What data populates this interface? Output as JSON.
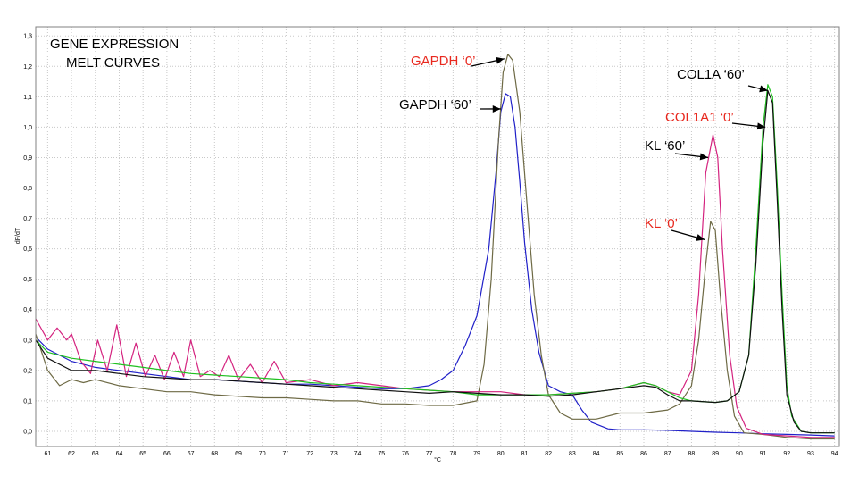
{
  "chart_data": {
    "type": "line",
    "title_lines": [
      "GENE EXPRESSION",
      "MELT CURVES"
    ],
    "xlabel": "°C",
    "ylabel": "dF/dT",
    "xlim": [
      60.5,
      94.2
    ],
    "ylim": [
      -0.05,
      1.33
    ],
    "x_ticks": [
      61,
      62,
      63,
      64,
      65,
      66,
      67,
      68,
      69,
      70,
      71,
      72,
      73,
      74,
      75,
      76,
      77,
      78,
      79,
      80,
      81,
      82,
      83,
      84,
      85,
      86,
      87,
      88,
      89,
      90,
      91,
      92,
      93,
      94
    ],
    "y_ticks": [
      0.0,
      0.1,
      0.2,
      0.3,
      0.4,
      0.5,
      0.6,
      0.7,
      0.8,
      0.9,
      1.0,
      1.1,
      1.2,
      1.3
    ],
    "y_tick_labels": [
      "0,0",
      "0,1",
      "0,2",
      "0,3",
      "0,4",
      "0,5",
      "0,6",
      "0,7",
      "0,8",
      "0,9",
      "1,0",
      "1,1",
      "1,2",
      "1,3"
    ],
    "grid": true,
    "legend": "none",
    "colors": {
      "black_text": "#000000",
      "red_text": "#e8281e",
      "grid": "#c8c8c8",
      "frame": "#808080"
    },
    "series": [
      {
        "color": "#2020c8",
        "points": [
          [
            60.5,
            0.31
          ],
          [
            61,
            0.27
          ],
          [
            62,
            0.23
          ],
          [
            63,
            0.21
          ],
          [
            64,
            0.2
          ],
          [
            65,
            0.19
          ],
          [
            66,
            0.18
          ],
          [
            67,
            0.17
          ],
          [
            68,
            0.17
          ],
          [
            69,
            0.165
          ],
          [
            70,
            0.16
          ],
          [
            71,
            0.155
          ],
          [
            72,
            0.155
          ],
          [
            73,
            0.15
          ],
          [
            74,
            0.145
          ],
          [
            75,
            0.14
          ],
          [
            76,
            0.14
          ],
          [
            77,
            0.15
          ],
          [
            77.5,
            0.17
          ],
          [
            78,
            0.2
          ],
          [
            78.5,
            0.28
          ],
          [
            79,
            0.38
          ],
          [
            79.5,
            0.6
          ],
          [
            79.8,
            0.85
          ],
          [
            80,
            1.05
          ],
          [
            80.2,
            1.11
          ],
          [
            80.4,
            1.1
          ],
          [
            80.6,
            1.0
          ],
          [
            80.8,
            0.82
          ],
          [
            81,
            0.62
          ],
          [
            81.3,
            0.4
          ],
          [
            81.6,
            0.26
          ],
          [
            82,
            0.15
          ],
          [
            82.5,
            0.13
          ],
          [
            83,
            0.12
          ],
          [
            83.4,
            0.07
          ],
          [
            83.8,
            0.03
          ],
          [
            84.5,
            0.008
          ],
          [
            85,
            0.005
          ],
          [
            86,
            0.005
          ],
          [
            87,
            0.003
          ],
          [
            88,
            0.0
          ],
          [
            89,
            -0.003
          ],
          [
            90,
            -0.005
          ],
          [
            91,
            -0.008
          ],
          [
            92,
            -0.01
          ],
          [
            93,
            -0.012
          ],
          [
            94,
            -0.015
          ]
        ]
      },
      {
        "color": "#6e6a45",
        "points": [
          [
            60.5,
            0.32
          ],
          [
            61,
            0.2
          ],
          [
            61.5,
            0.15
          ],
          [
            62,
            0.17
          ],
          [
            62.5,
            0.16
          ],
          [
            63,
            0.17
          ],
          [
            64,
            0.15
          ],
          [
            65,
            0.14
          ],
          [
            66,
            0.13
          ],
          [
            67,
            0.13
          ],
          [
            68,
            0.12
          ],
          [
            69,
            0.115
          ],
          [
            70,
            0.11
          ],
          [
            71,
            0.11
          ],
          [
            72,
            0.105
          ],
          [
            73,
            0.1
          ],
          [
            74,
            0.1
          ],
          [
            75,
            0.09
          ],
          [
            76,
            0.09
          ],
          [
            77,
            0.085
          ],
          [
            78,
            0.085
          ],
          [
            79,
            0.1
          ],
          [
            79.3,
            0.22
          ],
          [
            79.6,
            0.5
          ],
          [
            79.9,
            0.95
          ],
          [
            80.1,
            1.18
          ],
          [
            80.3,
            1.24
          ],
          [
            80.5,
            1.22
          ],
          [
            80.8,
            1.05
          ],
          [
            81.1,
            0.75
          ],
          [
            81.4,
            0.45
          ],
          [
            81.7,
            0.25
          ],
          [
            82,
            0.12
          ],
          [
            82.5,
            0.06
          ],
          [
            83,
            0.04
          ],
          [
            84,
            0.04
          ],
          [
            85,
            0.06
          ],
          [
            86,
            0.06
          ],
          [
            87,
            0.07
          ],
          [
            87.5,
            0.09
          ],
          [
            88,
            0.15
          ],
          [
            88.3,
            0.3
          ],
          [
            88.6,
            0.55
          ],
          [
            88.8,
            0.69
          ],
          [
            89,
            0.66
          ],
          [
            89.2,
            0.45
          ],
          [
            89.5,
            0.2
          ],
          [
            89.8,
            0.05
          ],
          [
            90.2,
            -0.005
          ],
          [
            91,
            -0.01
          ],
          [
            92,
            -0.02
          ],
          [
            93,
            -0.025
          ],
          [
            94,
            -0.025
          ]
        ]
      },
      {
        "color": "#d4237f",
        "points": [
          [
            60.5,
            0.37
          ],
          [
            61,
            0.3
          ],
          [
            61.4,
            0.34
          ],
          [
            61.8,
            0.3
          ],
          [
            62,
            0.32
          ],
          [
            62.4,
            0.23
          ],
          [
            62.8,
            0.19
          ],
          [
            63.1,
            0.3
          ],
          [
            63.5,
            0.2
          ],
          [
            63.9,
            0.35
          ],
          [
            64.3,
            0.18
          ],
          [
            64.7,
            0.29
          ],
          [
            65.1,
            0.18
          ],
          [
            65.5,
            0.25
          ],
          [
            65.9,
            0.17
          ],
          [
            66.3,
            0.26
          ],
          [
            66.7,
            0.18
          ],
          [
            67,
            0.3
          ],
          [
            67.4,
            0.18
          ],
          [
            67.8,
            0.2
          ],
          [
            68.2,
            0.18
          ],
          [
            68.6,
            0.25
          ],
          [
            69,
            0.17
          ],
          [
            69.5,
            0.22
          ],
          [
            70,
            0.16
          ],
          [
            70.5,
            0.23
          ],
          [
            71,
            0.16
          ],
          [
            72,
            0.17
          ],
          [
            73,
            0.15
          ],
          [
            74,
            0.16
          ],
          [
            75,
            0.15
          ],
          [
            76,
            0.14
          ],
          [
            77,
            0.135
          ],
          [
            78,
            0.13
          ],
          [
            79,
            0.13
          ],
          [
            80,
            0.13
          ],
          [
            81,
            0.12
          ],
          [
            82,
            0.12
          ],
          [
            83,
            0.125
          ],
          [
            84,
            0.13
          ],
          [
            85,
            0.14
          ],
          [
            86,
            0.16
          ],
          [
            86.5,
            0.15
          ],
          [
            87,
            0.13
          ],
          [
            87.5,
            0.12
          ],
          [
            88,
            0.2
          ],
          [
            88.3,
            0.45
          ],
          [
            88.6,
            0.85
          ],
          [
            88.9,
            0.975
          ],
          [
            89.1,
            0.9
          ],
          [
            89.3,
            0.6
          ],
          [
            89.6,
            0.25
          ],
          [
            89.9,
            0.08
          ],
          [
            90.3,
            0.01
          ],
          [
            91,
            -0.01
          ],
          [
            92,
            -0.015
          ],
          [
            93,
            -0.02
          ],
          [
            94,
            -0.02
          ]
        ]
      },
      {
        "color": "#20c020",
        "points": [
          [
            60.5,
            0.3
          ],
          [
            61,
            0.26
          ],
          [
            62,
            0.24
          ],
          [
            63,
            0.23
          ],
          [
            64,
            0.22
          ],
          [
            65,
            0.21
          ],
          [
            66,
            0.2
          ],
          [
            67,
            0.19
          ],
          [
            68,
            0.185
          ],
          [
            69,
            0.18
          ],
          [
            70,
            0.175
          ],
          [
            71,
            0.17
          ],
          [
            72,
            0.16
          ],
          [
            73,
            0.155
          ],
          [
            74,
            0.15
          ],
          [
            75,
            0.145
          ],
          [
            76,
            0.14
          ],
          [
            77,
            0.135
          ],
          [
            78,
            0.13
          ],
          [
            79,
            0.12
          ],
          [
            80,
            0.12
          ],
          [
            81,
            0.12
          ],
          [
            82,
            0.12
          ],
          [
            83,
            0.125
          ],
          [
            84,
            0.13
          ],
          [
            85,
            0.14
          ],
          [
            86,
            0.16
          ],
          [
            86.5,
            0.15
          ],
          [
            87,
            0.13
          ],
          [
            87.5,
            0.11
          ],
          [
            88,
            0.1
          ],
          [
            89,
            0.095
          ],
          [
            89.5,
            0.1
          ],
          [
            90,
            0.13
          ],
          [
            90.4,
            0.25
          ],
          [
            90.7,
            0.6
          ],
          [
            91,
            1.0
          ],
          [
            91.2,
            1.14
          ],
          [
            91.4,
            1.1
          ],
          [
            91.6,
            0.8
          ],
          [
            91.8,
            0.45
          ],
          [
            92,
            0.15
          ],
          [
            92.2,
            0.05
          ],
          [
            92.6,
            0.0
          ],
          [
            93,
            -0.005
          ],
          [
            94,
            -0.005
          ]
        ]
      },
      {
        "color": "#101010",
        "points": [
          [
            60.5,
            0.3
          ],
          [
            61,
            0.24
          ],
          [
            62,
            0.2
          ],
          [
            63,
            0.2
          ],
          [
            64,
            0.19
          ],
          [
            65,
            0.18
          ],
          [
            66,
            0.175
          ],
          [
            67,
            0.17
          ],
          [
            68,
            0.17
          ],
          [
            69,
            0.165
          ],
          [
            70,
            0.16
          ],
          [
            71,
            0.155
          ],
          [
            72,
            0.15
          ],
          [
            73,
            0.145
          ],
          [
            74,
            0.14
          ],
          [
            75,
            0.135
          ],
          [
            76,
            0.13
          ],
          [
            77,
            0.125
          ],
          [
            78,
            0.13
          ],
          [
            79,
            0.125
          ],
          [
            80,
            0.12
          ],
          [
            81,
            0.12
          ],
          [
            82,
            0.115
          ],
          [
            83,
            0.12
          ],
          [
            84,
            0.13
          ],
          [
            85,
            0.14
          ],
          [
            86,
            0.15
          ],
          [
            86.5,
            0.145
          ],
          [
            87,
            0.12
          ],
          [
            87.5,
            0.1
          ],
          [
            88,
            0.1
          ],
          [
            89,
            0.095
          ],
          [
            89.5,
            0.1
          ],
          [
            90,
            0.13
          ],
          [
            90.4,
            0.25
          ],
          [
            90.7,
            0.55
          ],
          [
            91,
            0.95
          ],
          [
            91.2,
            1.12
          ],
          [
            91.4,
            1.08
          ],
          [
            91.6,
            0.75
          ],
          [
            91.8,
            0.4
          ],
          [
            92,
            0.12
          ],
          [
            92.3,
            0.03
          ],
          [
            92.6,
            0.0
          ],
          [
            93,
            -0.005
          ],
          [
            94,
            -0.005
          ]
        ]
      }
    ],
    "annotations": [
      {
        "text": "GAPDH ‘0’",
        "color": "#e8281e",
        "arrow_to": [
          80.15,
          1.225
        ]
      },
      {
        "text": "GAPDH ‘60’",
        "color": "#000000",
        "arrow_to": [
          80.0,
          1.06
        ]
      },
      {
        "text": "COL1A ‘60’",
        "color": "#000000",
        "arrow_to": [
          91.2,
          1.12
        ]
      },
      {
        "text": "COL1A1 ‘0’",
        "color": "#e8281e",
        "arrow_to": [
          91.1,
          1.0
        ]
      },
      {
        "text": "KL ‘60’",
        "color": "#000000",
        "arrow_to": [
          88.7,
          0.9
        ]
      },
      {
        "text": "KL ‘0’",
        "color": "#e8281e",
        "arrow_to": [
          88.55,
          0.63
        ]
      }
    ]
  }
}
